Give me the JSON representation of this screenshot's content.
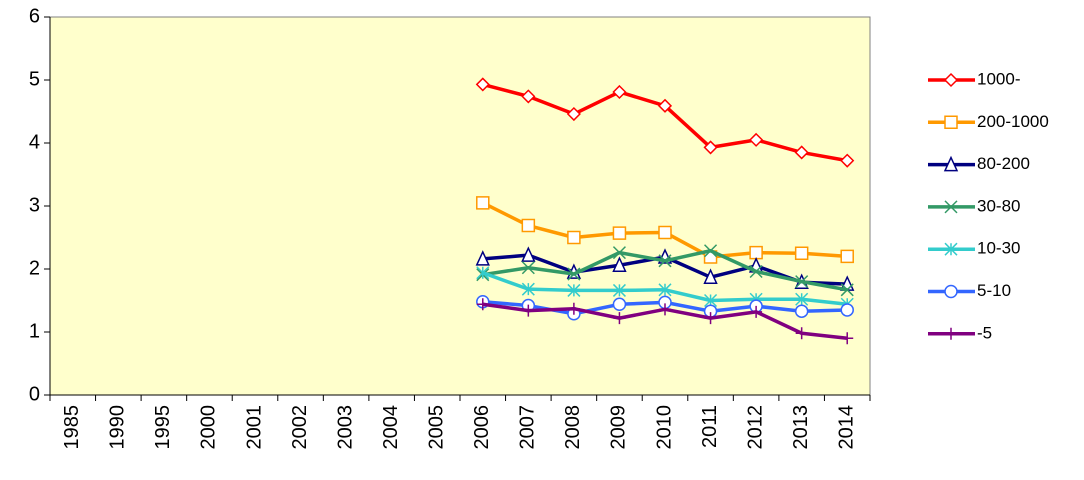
{
  "chart_data": {
    "type": "line",
    "categories": [
      "1985",
      "1990",
      "1995",
      "2000",
      "2001",
      "2002",
      "2003",
      "2004",
      "2005",
      "2006",
      "2007",
      "2008",
      "2009",
      "2010",
      "2011",
      "2012",
      "2013",
      "2014"
    ],
    "ylim": [
      0,
      6
    ],
    "yticks": [
      0,
      1,
      2,
      3,
      4,
      5,
      6
    ],
    "grid": false,
    "legend": "right",
    "background": "#ffffcc",
    "series": [
      {
        "name": "1000-",
        "color": "#ff0000",
        "marker": "diamond",
        "values": [
          null,
          null,
          null,
          null,
          null,
          null,
          null,
          null,
          null,
          4.93,
          4.74,
          4.46,
          4.81,
          4.59,
          3.93,
          4.05,
          3.85,
          3.72
        ]
      },
      {
        "name": "200-1000",
        "color": "#ff9900",
        "marker": "square",
        "values": [
          null,
          null,
          null,
          null,
          null,
          null,
          null,
          null,
          null,
          3.05,
          2.69,
          2.5,
          2.57,
          2.58,
          2.19,
          2.26,
          2.25,
          2.2
        ]
      },
      {
        "name": "80-200",
        "color": "#000080",
        "marker": "triangle",
        "values": [
          null,
          null,
          null,
          null,
          null,
          null,
          null,
          null,
          null,
          2.16,
          2.22,
          1.95,
          2.06,
          2.19,
          1.87,
          2.05,
          1.79,
          1.76
        ]
      },
      {
        "name": "30-80",
        "color": "#339966",
        "marker": "x",
        "values": [
          null,
          null,
          null,
          null,
          null,
          null,
          null,
          null,
          null,
          1.91,
          2.02,
          1.92,
          2.26,
          2.13,
          2.29,
          1.96,
          1.8,
          1.67
        ]
      },
      {
        "name": "10-30",
        "color": "#33cccc",
        "marker": "asterisk",
        "values": [
          null,
          null,
          null,
          null,
          null,
          null,
          null,
          null,
          null,
          1.94,
          1.68,
          1.66,
          1.66,
          1.67,
          1.5,
          1.52,
          1.52,
          1.44
        ]
      },
      {
        "name": "5-10",
        "color": "#3366ff",
        "marker": "circle",
        "values": [
          null,
          null,
          null,
          null,
          null,
          null,
          null,
          null,
          null,
          1.48,
          1.42,
          1.29,
          1.44,
          1.47,
          1.33,
          1.41,
          1.33,
          1.35
        ]
      },
      {
        "name": "-5",
        "color": "#800080",
        "marker": "plus",
        "values": [
          null,
          null,
          null,
          null,
          null,
          null,
          null,
          null,
          null,
          1.44,
          1.34,
          1.37,
          1.22,
          1.36,
          1.22,
          1.32,
          0.98,
          0.9
        ]
      }
    ]
  }
}
